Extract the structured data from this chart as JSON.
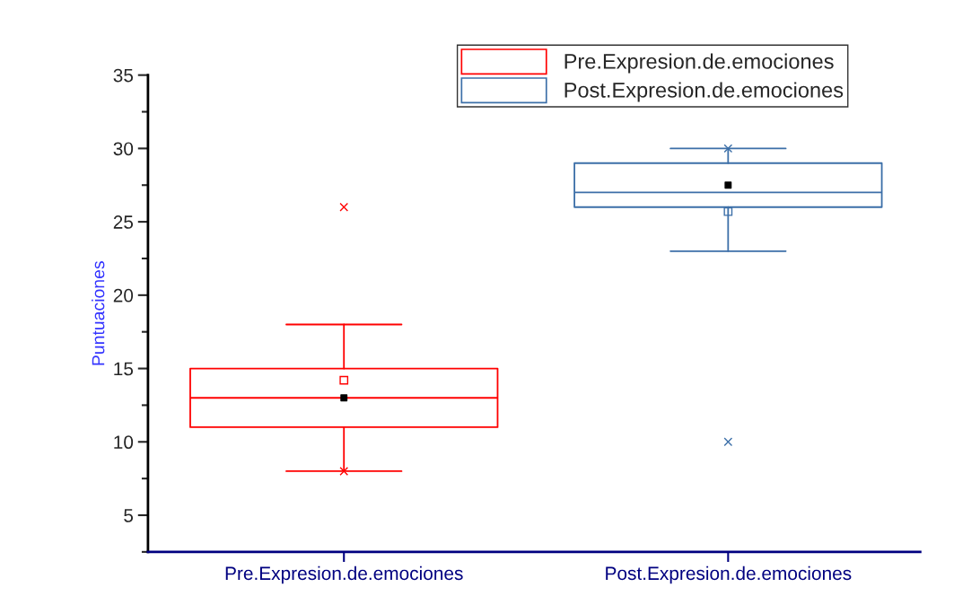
{
  "chart_data": {
    "type": "box",
    "ylabel": "Puntuaciones",
    "categories": [
      "Pre.Expresion.de.emociones",
      "Post.Expresion.de.emociones"
    ],
    "series": [
      {
        "name": "Pre.Expresion.de.emociones",
        "color": "#ff0000",
        "boxes": [
          {
            "low": 8,
            "q1": 11,
            "median": 13,
            "q3": 15,
            "high": 18,
            "mean": 14.2,
            "outliers": [
              26,
              8
            ]
          },
          null
        ]
      },
      {
        "name": "Post.Expresion.de.emociones",
        "color": "#3c6fa8",
        "boxes": [
          null,
          {
            "low": 23,
            "q1": 26,
            "median": 27,
            "q3": 29,
            "high": 30,
            "mean": 25.7,
            "outliers": [
              30,
              10
            ]
          }
        ]
      },
      {
        "type": "scatter",
        "color": "#000000",
        "marker": "square",
        "x": [
          "Pre.Expresion.de.emociones",
          "Post.Expresion.de.emociones"
        ],
        "values": [
          13,
          27.5
        ]
      }
    ],
    "ylim": [
      2.5,
      35
    ],
    "yticks": [
      5,
      10,
      15,
      20,
      25,
      30,
      35
    ],
    "legend": "top right",
    "grid": false
  }
}
